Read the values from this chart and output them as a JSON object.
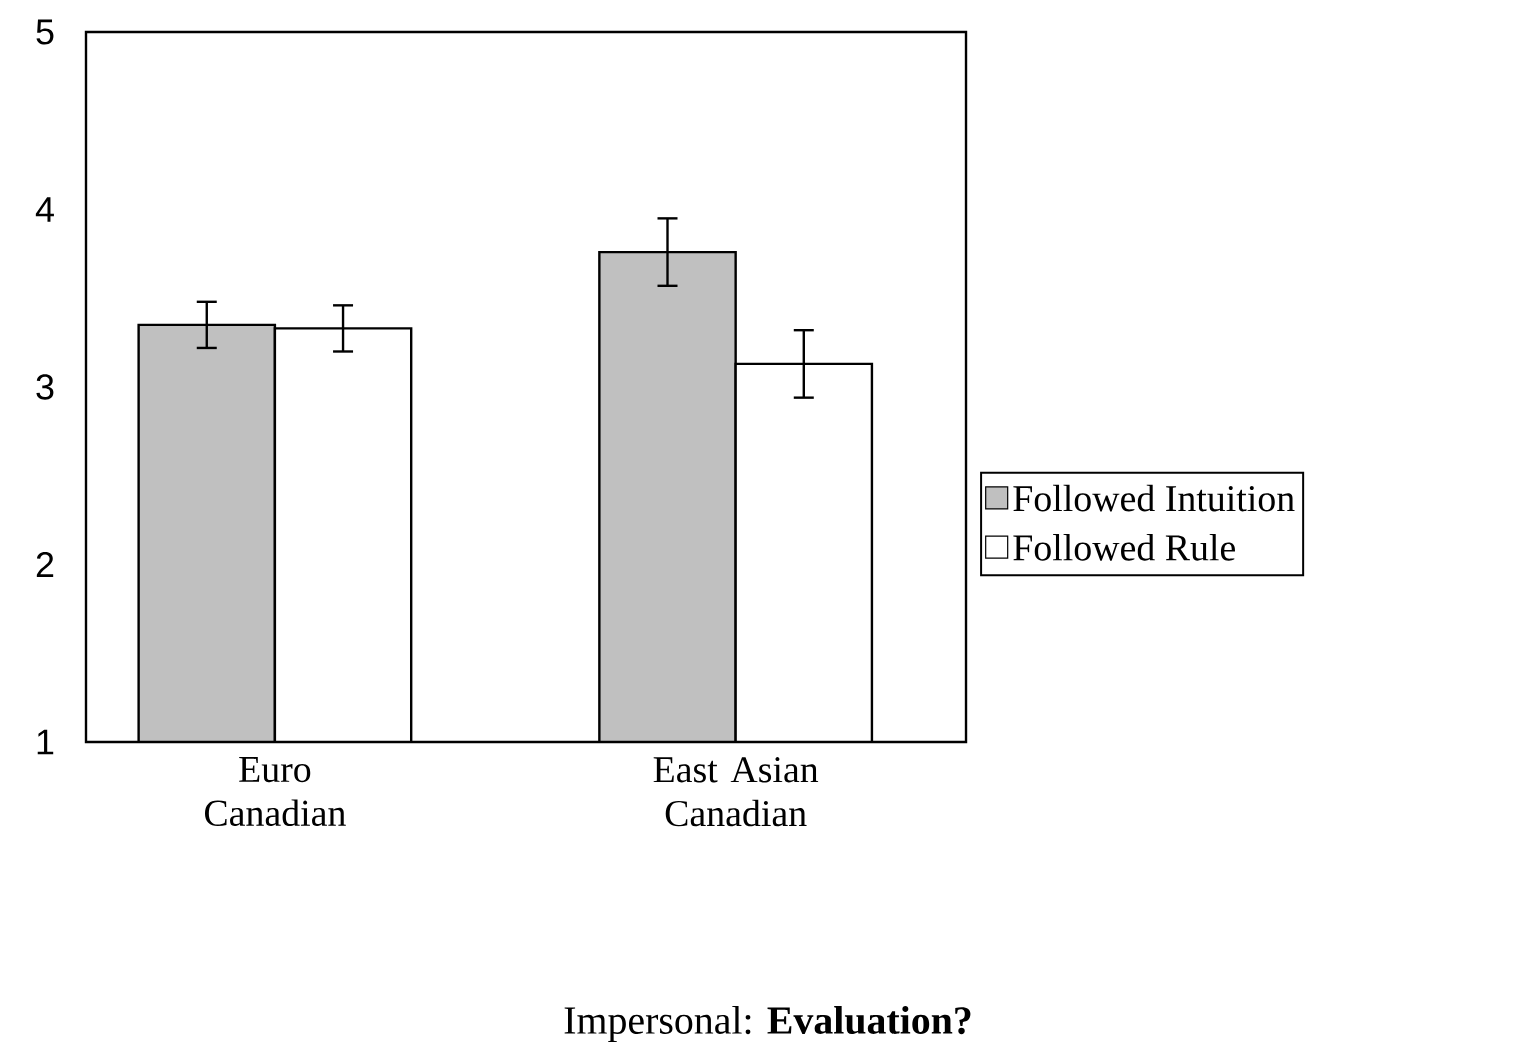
{
  "chart_data": {
    "type": "bar",
    "title": "Impersonal: **Evaluation?**",
    "categories": [
      "Euro Canadian",
      "East Asian Canadian"
    ],
    "series": [
      {
        "name": "Followed Intuition",
        "color": "#c0c0c0",
        "values": [
          3.35,
          3.76
        ],
        "errors": [
          0.13,
          0.19
        ]
      },
      {
        "name": "Followed Rule",
        "color": "#ffffff",
        "values": [
          3.33,
          3.13
        ],
        "errors": [
          0.13,
          0.19
        ]
      }
    ],
    "ylim": [
      1,
      5
    ],
    "yticks": [
      1,
      2,
      3,
      4,
      5
    ],
    "legend": "right"
  }
}
